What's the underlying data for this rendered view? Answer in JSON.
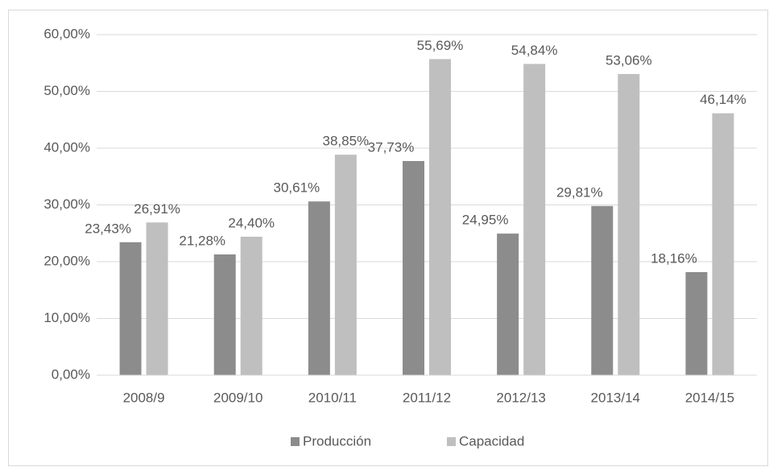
{
  "chart_data": {
    "type": "bar",
    "categories": [
      "2008/9",
      "2009/10",
      "2010/11",
      "2011/12",
      "2012/13",
      "2013/14",
      "2014/15"
    ],
    "series": [
      {
        "name": "Producción",
        "color": "#8c8c8c",
        "values": [
          23.43,
          21.28,
          30.61,
          37.73,
          24.95,
          29.81,
          18.16
        ],
        "value_labels": [
          "23,43%",
          "21,28%",
          "30,61%",
          "37,73%",
          "24,95%",
          "29,81%",
          "18,16%"
        ]
      },
      {
        "name": "Capacidad",
        "color": "#bfbfbf",
        "values": [
          26.91,
          24.4,
          38.85,
          55.69,
          54.84,
          53.06,
          46.14
        ],
        "value_labels": [
          "26,91%",
          "24,40%",
          "38,85%",
          "55,69%",
          "54,84%",
          "53,06%",
          "46,14%"
        ]
      }
    ],
    "ylim": [
      0,
      60
    ],
    "yticks": [
      {
        "value": 0,
        "label": "0,00%"
      },
      {
        "value": 10,
        "label": "10,00%"
      },
      {
        "value": 20,
        "label": "20,00%"
      },
      {
        "value": 30,
        "label": "30,00%"
      },
      {
        "value": 40,
        "label": "40,00%"
      },
      {
        "value": 50,
        "label": "50,00%"
      },
      {
        "value": 60,
        "label": "60,00%"
      }
    ],
    "grid": true,
    "legend": "bottom"
  }
}
